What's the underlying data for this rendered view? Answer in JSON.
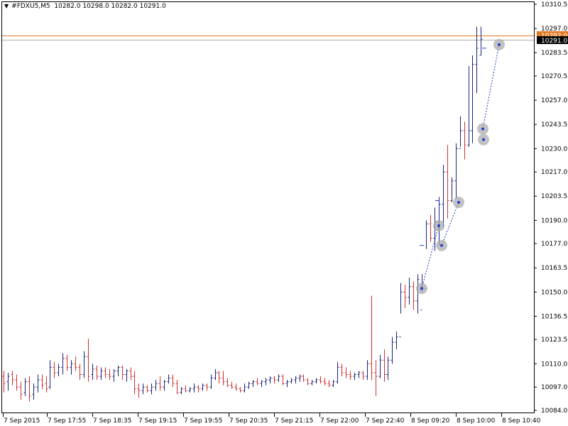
{
  "header": {
    "symbol_label": "#FDXU5,M5",
    "ohlc_text": "10282.0 10298.0 10282.0 10291.0"
  },
  "price_tags": {
    "ask": "10292.0",
    "bid": "10291.0"
  },
  "colors": {
    "up_bar": "#1a237e",
    "down_bar": "#d32f2f",
    "ask_line": "#e07b24",
    "bid_line": "#b0b0b0",
    "trade_line": "#1f3fd0",
    "trade_marker": "#a8a8a8"
  },
  "chart_data": {
    "type": "ohlc",
    "y_ticks": [
      "10310.5",
      "10297.0",
      "10283.5",
      "10270.5",
      "10257.0",
      "10243.5",
      "10230.0",
      "10217.0",
      "10203.5",
      "10190.0",
      "10177.0",
      "10163.5",
      "10150.0",
      "10136.5",
      "10123.5",
      "10110.0",
      "10097.0",
      "10084.0"
    ],
    "ylim": [
      10084.0,
      10310.5
    ],
    "x_ticks": [
      "7 Sep 2015",
      "7 Sep 17:55",
      "7 Sep 18:35",
      "7 Sep 19:15",
      "7 Sep 19:55",
      "7 Sep 20:35",
      "7 Sep 21:15",
      "7 Sep 22:00",
      "7 Sep 22:40",
      "8 Sep 09:20",
      "8 Sep 10:00",
      "8 Sep 10:40"
    ],
    "bars": [
      [
        10103,
        10106,
        10094,
        10099
      ],
      [
        10100,
        10105,
        10095,
        10103
      ],
      [
        10104,
        10106,
        10098,
        10101
      ],
      [
        10101,
        10104,
        10095,
        10097
      ],
      [
        10097,
        10100,
        10090,
        10093
      ],
      [
        10094,
        10102,
        10092,
        10100
      ],
      [
        10100,
        10103,
        10089,
        10092
      ],
      [
        10093,
        10099,
        10090,
        10097
      ],
      [
        10097,
        10104,
        10094,
        10101
      ],
      [
        10101,
        10104,
        10096,
        10098
      ],
      [
        10099,
        10103,
        10094,
        10096
      ],
      [
        10097,
        10112,
        10096,
        10108
      ],
      [
        10108,
        10111,
        10102,
        10105
      ],
      [
        10105,
        10110,
        10103,
        10108
      ],
      [
        10108,
        10116,
        10104,
        10113
      ],
      [
        10113,
        10115,
        10106,
        10108
      ],
      [
        10108,
        10112,
        10104,
        10110
      ],
      [
        10110,
        10114,
        10106,
        10108
      ],
      [
        10108,
        10110,
        10101,
        10104
      ],
      [
        10104,
        10117,
        10102,
        10114
      ],
      [
        10114,
        10124,
        10100,
        10103
      ],
      [
        10104,
        10110,
        10101,
        10107
      ],
      [
        10107,
        10109,
        10101,
        10103
      ],
      [
        10103,
        10108,
        10101,
        10106
      ],
      [
        10106,
        10108,
        10102,
        10104
      ],
      [
        10104,
        10107,
        10101,
        10103
      ],
      [
        10103,
        10107,
        10100,
        10106
      ],
      [
        10106,
        10109,
        10103,
        10108
      ],
      [
        10108,
        10109,
        10101,
        10104
      ],
      [
        10104,
        10107,
        10100,
        10106
      ],
      [
        10106,
        10108,
        10101,
        10103
      ],
      [
        10103,
        10106,
        10093,
        10096
      ],
      [
        10096,
        10099,
        10091,
        10095
      ],
      [
        10095,
        10099,
        10093,
        10097
      ],
      [
        10097,
        10098,
        10094,
        10095
      ],
      [
        10095,
        10099,
        10093,
        10097
      ],
      [
        10097,
        10101,
        10095,
        10099
      ],
      [
        10099,
        10103,
        10095,
        10097
      ],
      [
        10097,
        10101,
        10095,
        10100
      ],
      [
        10100,
        10104,
        10099,
        10102
      ],
      [
        10102,
        10104,
        10097,
        10099
      ],
      [
        10099,
        10101,
        10093,
        10094
      ],
      [
        10094,
        10097,
        10093,
        10096
      ],
      [
        10096,
        10098,
        10094,
        10095
      ],
      [
        10095,
        10097,
        10094,
        10096
      ],
      [
        10096,
        10099,
        10094,
        10097
      ],
      [
        10097,
        10098,
        10094,
        10096
      ],
      [
        10096,
        10099,
        10095,
        10098
      ],
      [
        10098,
        10099,
        10095,
        10097
      ],
      [
        10097,
        10104,
        10096,
        10102
      ],
      [
        10102,
        10107,
        10101,
        10105
      ],
      [
        10105,
        10106,
        10099,
        10102
      ],
      [
        10102,
        10106,
        10098,
        10100
      ],
      [
        10100,
        10102,
        10097,
        10098
      ],
      [
        10098,
        10100,
        10096,
        10097
      ],
      [
        10097,
        10099,
        10095,
        10096
      ],
      [
        10096,
        10097,
        10094,
        10095
      ],
      [
        10095,
        10099,
        10094,
        10097
      ],
      [
        10097,
        10100,
        10096,
        10099
      ],
      [
        10099,
        10101,
        10097,
        10100
      ],
      [
        10100,
        10102,
        10098,
        10099
      ],
      [
        10099,
        10101,
        10097,
        10100
      ],
      [
        10100,
        10102,
        10098,
        10101
      ],
      [
        10101,
        10103,
        10099,
        10102
      ],
      [
        10102,
        10103,
        10099,
        10101
      ],
      [
        10101,
        10104,
        10100,
        10103
      ],
      [
        10103,
        10104,
        10098,
        10099
      ],
      [
        10099,
        10101,
        10097,
        10100
      ],
      [
        10100,
        10102,
        10099,
        10101
      ],
      [
        10101,
        10103,
        10099,
        10102
      ],
      [
        10102,
        10104,
        10100,
        10103
      ],
      [
        10103,
        10104,
        10100,
        10101
      ],
      [
        10101,
        10102,
        10098,
        10099
      ],
      [
        10099,
        10101,
        10098,
        10100
      ],
      [
        10100,
        10102,
        10099,
        10101
      ],
      [
        10101,
        10103,
        10099,
        10100
      ],
      [
        10100,
        10102,
        10098,
        10099
      ],
      [
        10099,
        10101,
        10097,
        10098
      ],
      [
        10098,
        10101,
        10097,
        10100
      ],
      [
        10100,
        10111,
        10099,
        10108
      ],
      [
        10108,
        10110,
        10103,
        10105
      ],
      [
        10105,
        10108,
        10102,
        10104
      ],
      [
        10104,
        10106,
        10101,
        10103
      ],
      [
        10103,
        10105,
        10101,
        10104
      ],
      [
        10104,
        10106,
        10102,
        10105
      ],
      [
        10105,
        10106,
        10101,
        10103
      ],
      [
        10103,
        10112,
        10101,
        10110
      ],
      [
        10110,
        10148,
        10101,
        10105
      ],
      [
        10105,
        10112,
        10092,
        10103
      ],
      [
        10103,
        10115,
        10102,
        10112
      ],
      [
        10112,
        10118,
        10100,
        10104
      ],
      [
        10104,
        10114,
        10101,
        10112
      ],
      [
        10112,
        10125,
        10110,
        10122
      ],
      [
        10122,
        10128,
        10118,
        10125
      ],
      [
        10125,
        10155,
        10138,
        10150
      ],
      [
        10150,
        10154,
        10141,
        10147
      ],
      [
        10147,
        10158,
        10143,
        10153
      ],
      [
        10153,
        10156,
        10140,
        10145
      ],
      [
        10145,
        10160,
        10138,
        10157
      ],
      [
        10140,
        10160,
        10150,
        10152
      ],
      [
        10152,
        10190,
        10174,
        10188
      ],
      [
        10188,
        10193,
        10178,
        10180
      ],
      [
        10180,
        10197,
        10173,
        10189
      ],
      [
        10189,
        10203,
        10176,
        10199
      ],
      [
        10199,
        10221,
        10186,
        10217
      ],
      [
        10217,
        10232,
        10191,
        10201
      ],
      [
        10201,
        10214,
        10200,
        10212
      ],
      [
        10212,
        10233,
        10202,
        10230
      ],
      [
        10230,
        10248,
        10231,
        10240
      ],
      [
        10240,
        10245,
        10224,
        10232
      ],
      [
        10232,
        10276,
        10231,
        10240
      ],
      [
        10240,
        10282,
        10233,
        10277
      ],
      [
        10277,
        10298,
        10261,
        10286
      ],
      [
        10282,
        10298,
        10282,
        10291
      ]
    ]
  }
}
